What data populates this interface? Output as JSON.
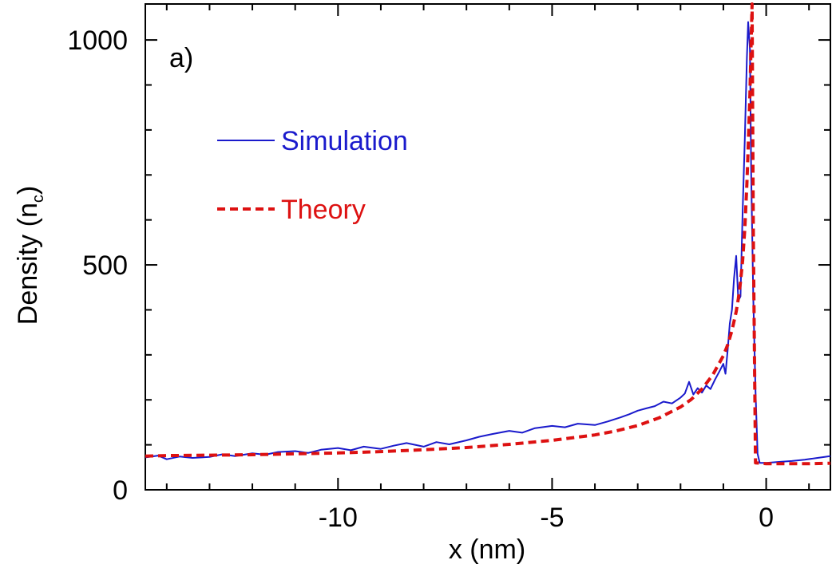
{
  "chart_data": {
    "type": "line",
    "panel_label": "a)",
    "xlabel": "x (nm)",
    "ylabel": "Density (n",
    "ylabel_subscript": "c",
    "ylabel_close": ")",
    "xlim": [
      -14.5,
      1.5
    ],
    "ylim": [
      0,
      1080
    ],
    "x_ticks": [
      {
        "value": -10,
        "label": "-10"
      },
      {
        "value": -5,
        "label": "-5"
      },
      {
        "value": 0,
        "label": "0"
      }
    ],
    "x_minor_ticks": [
      -14,
      -13,
      -12,
      -11,
      -9,
      -8,
      -7,
      -6,
      -4,
      -3,
      -2,
      -1,
      1
    ],
    "y_ticks": [
      {
        "value": 0,
        "label": "0"
      },
      {
        "value": 500,
        "label": "500"
      },
      {
        "value": 1000,
        "label": "1000"
      }
    ],
    "y_minor_ticks": [
      100,
      200,
      300,
      400,
      600,
      700,
      800,
      900
    ],
    "grid": false,
    "legend_position": "upper-left",
    "series": [
      {
        "name": "Simulation",
        "color": "#1a1acc",
        "style": "solid",
        "x": [
          -14.5,
          -14.2,
          -14.0,
          -13.7,
          -13.4,
          -13.0,
          -12.7,
          -12.4,
          -12.0,
          -11.7,
          -11.4,
          -11.0,
          -10.7,
          -10.4,
          -10.0,
          -9.7,
          -9.4,
          -9.0,
          -8.7,
          -8.4,
          -8.0,
          -7.7,
          -7.4,
          -7.0,
          -6.7,
          -6.4,
          -6.0,
          -5.7,
          -5.4,
          -5.0,
          -4.7,
          -4.4,
          -4.0,
          -3.7,
          -3.4,
          -3.2,
          -3.0,
          -2.8,
          -2.6,
          -2.4,
          -2.2,
          -2.0,
          -1.9,
          -1.8,
          -1.7,
          -1.6,
          -1.5,
          -1.4,
          -1.3,
          -1.2,
          -1.1,
          -1.0,
          -0.95,
          -0.9,
          -0.85,
          -0.8,
          -0.75,
          -0.7,
          -0.65,
          -0.6,
          -0.55,
          -0.5,
          -0.45,
          -0.42,
          -0.38,
          -0.35,
          -0.3,
          -0.25,
          -0.2,
          -0.15,
          0.0,
          0.3,
          0.6,
          0.9,
          1.2,
          1.5
        ],
        "y": [
          72,
          76,
          68,
          74,
          71,
          73,
          79,
          75,
          81,
          78,
          84,
          86,
          82,
          89,
          93,
          88,
          96,
          91,
          98,
          104,
          96,
          106,
          101,
          110,
          118,
          124,
          131,
          127,
          137,
          142,
          139,
          147,
          144,
          152,
          161,
          168,
          176,
          181,
          186,
          196,
          192,
          205,
          214,
          240,
          212,
          226,
          216,
          232,
          224,
          244,
          262,
          280,
          258,
          310,
          370,
          400,
          470,
          520,
          420,
          430,
          620,
          780,
          960,
          1040,
          980,
          700,
          420,
          220,
          80,
          60,
          60,
          62,
          64,
          67,
          71,
          75
        ]
      },
      {
        "name": "Theory",
        "color": "#dd1111",
        "style": "dashed",
        "x": [
          -14.5,
          -14.0,
          -13.0,
          -12.0,
          -11.0,
          -10.0,
          -9.0,
          -8.0,
          -7.0,
          -6.0,
          -5.0,
          -4.0,
          -3.5,
          -3.0,
          -2.5,
          -2.0,
          -1.75,
          -1.5,
          -1.25,
          -1.0,
          -0.9,
          -0.8,
          -0.7,
          -0.65,
          -0.6,
          -0.55,
          -0.5,
          -0.45,
          -0.42,
          -0.38,
          -0.35,
          -0.33,
          -0.3,
          -0.27,
          -0.25,
          0.0,
          0.5,
          1.0,
          1.5
        ],
        "y": [
          75,
          76,
          77,
          78,
          80,
          82,
          85,
          89,
          94,
          101,
          110,
          122,
          131,
          143,
          160,
          184,
          201,
          224,
          255,
          298,
          322,
          354,
          396,
          425,
          462,
          510,
          580,
          680,
          760,
          880,
          1000,
          1080,
          560,
          260,
          60,
          58,
          58,
          58,
          59
        ]
      }
    ]
  }
}
